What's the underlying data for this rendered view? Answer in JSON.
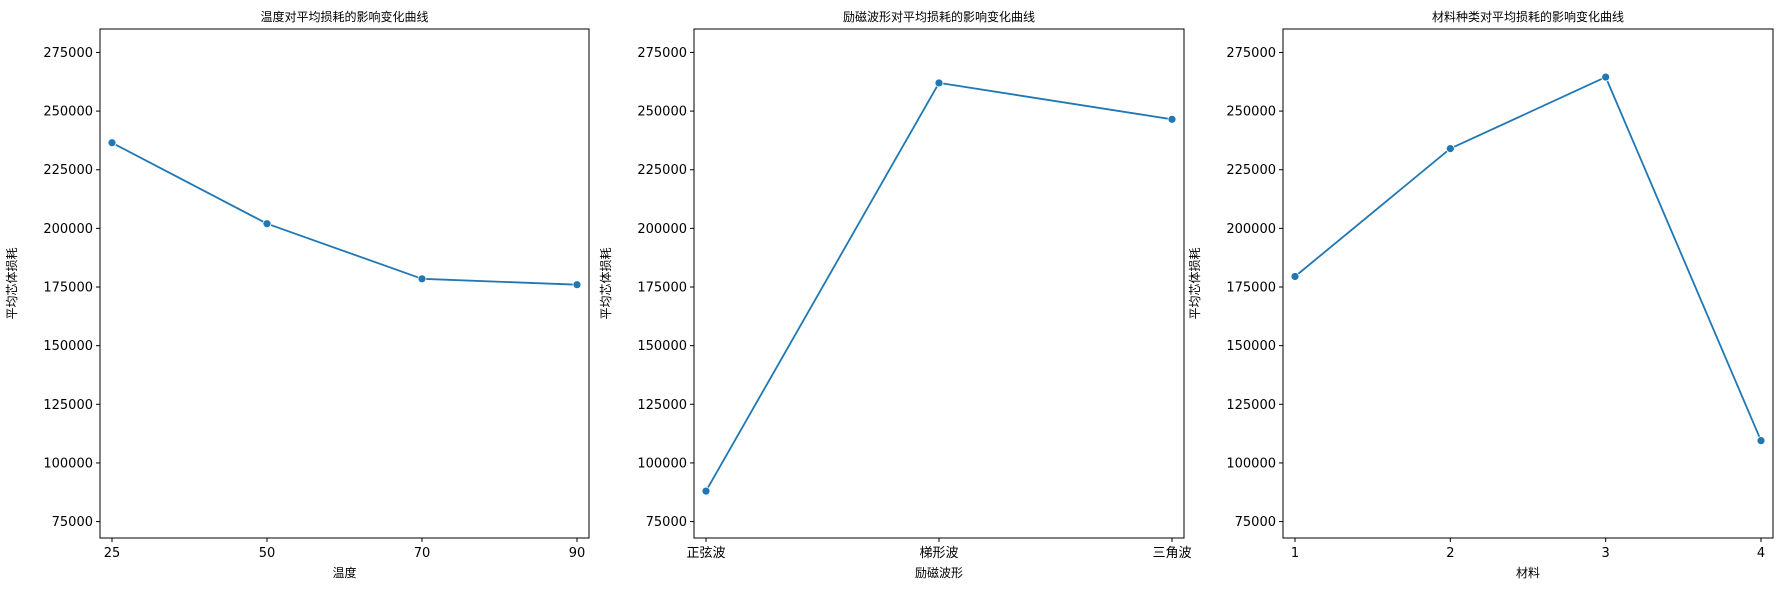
{
  "figure": {
    "line_color": "#1f77b4",
    "marker": "circle"
  },
  "chart_data": [
    {
      "type": "line",
      "title": "温度对平均损耗的影响变化曲线",
      "xlabel": "温度",
      "ylabel": "平均芯体损耗",
      "categories": [
        "25",
        "50",
        "70",
        "90"
      ],
      "values": [
        236500,
        202000,
        178500,
        176000
      ],
      "ylim": [
        68000,
        285000
      ],
      "yticks": [
        75000,
        100000,
        125000,
        150000,
        175000,
        200000,
        225000,
        250000,
        275000
      ],
      "grid": false,
      "legend": "none"
    },
    {
      "type": "line",
      "title": "励磁波形对平均损耗的影响变化曲线",
      "xlabel": "励磁波形",
      "ylabel": "平均芯体损耗",
      "categories": [
        "正弦波",
        "梯形波",
        "三角波"
      ],
      "values": [
        88000,
        262000,
        246500
      ],
      "ylim": [
        68000,
        285000
      ],
      "yticks": [
        75000,
        100000,
        125000,
        150000,
        175000,
        200000,
        225000,
        250000,
        275000
      ],
      "grid": false,
      "legend": "none"
    },
    {
      "type": "line",
      "title": "材料种类对平均损耗的影响变化曲线",
      "xlabel": "材料",
      "ylabel": "平均芯体损耗",
      "categories": [
        "1",
        "2",
        "3",
        "4"
      ],
      "values": [
        179500,
        234000,
        264500,
        109500
      ],
      "ylim": [
        68000,
        285000
      ],
      "yticks": [
        75000,
        100000,
        125000,
        150000,
        175000,
        200000,
        225000,
        250000,
        275000
      ],
      "grid": false,
      "legend": "none"
    }
  ]
}
